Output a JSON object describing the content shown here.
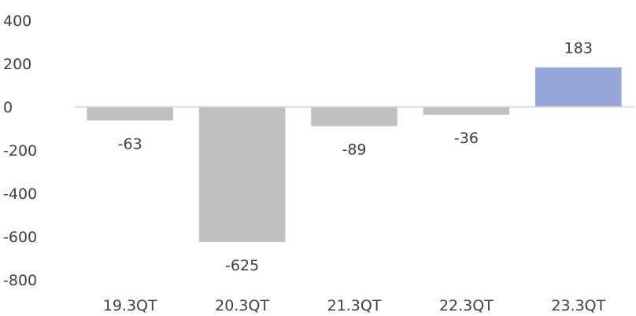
{
  "chart_data": {
    "type": "bar",
    "title": "",
    "xlabel": "",
    "ylabel": "",
    "categories": [
      "19.3QT",
      "20.3QT",
      "21.3QT",
      "22.3QT",
      "23.3QT"
    ],
    "values": [
      -63,
      -625,
      -89,
      -36,
      183
    ],
    "data_labels": [
      "-63",
      "-625",
      "-89",
      "-36",
      "183"
    ],
    "ylim": [
      -800,
      400
    ],
    "yticks": [
      400,
      200,
      0,
      -200,
      -400,
      -600,
      -800
    ],
    "ytick_labels": [
      "400",
      "200",
      "0",
      "-200",
      "-400",
      "-600",
      "-800"
    ],
    "grid": false,
    "legend": "none",
    "colors": {
      "bar_default": "#bfbfbf",
      "bar_highlight": "#97a6d6",
      "axis_line": "#d9d9d9"
    },
    "highlight_index": 4
  }
}
